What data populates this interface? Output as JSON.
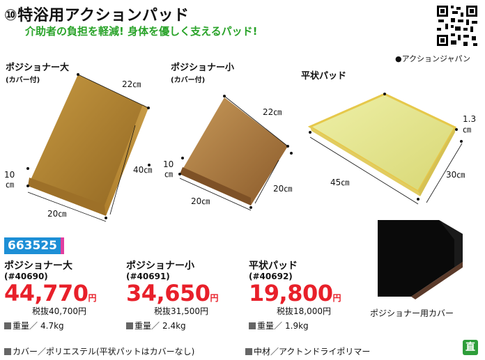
{
  "header": {
    "number_mark": "⑩",
    "title": "特浴用アクションパッド",
    "subtitle": "介助者の負担を軽減! 身体を優しく支えるパッド!"
  },
  "maker": "●アクションジャパン",
  "product_images": [
    {
      "label": "ポジショナー大",
      "sub": "(カバー付)",
      "dims": [
        "22㎝",
        "40㎝",
        "20㎝",
        "10",
        "㎝"
      ]
    },
    {
      "label": "ポジショナー小",
      "sub": "(カバー付)",
      "dims": [
        "22㎝",
        "20㎝",
        "20㎝",
        "10",
        "㎝"
      ]
    },
    {
      "label": "平状パッド",
      "sub": "",
      "dims": [
        "45㎝",
        "30㎝",
        "1.3",
        "㎝"
      ]
    }
  ],
  "catalog_code": "663525",
  "products": [
    {
      "name": "ポジショナー大",
      "code": "(#40690)",
      "price": "44,770",
      "yen": "円",
      "tax_excl": "税抜40,700円",
      "weight_label": "重量／",
      "weight": "4.7kg"
    },
    {
      "name": "ポジショナー小",
      "code": "(#40691)",
      "price": "34,650",
      "yen": "円",
      "tax_excl": "税抜31,500円",
      "weight_label": "重量／",
      "weight": "2.4kg"
    },
    {
      "name": "平状パッド",
      "code": "(#40692)",
      "price": "19,800",
      "yen": "円",
      "tax_excl": "税抜18,000円",
      "weight_label": "重量／",
      "weight": "1.9kg"
    }
  ],
  "cover_caption": "ポジショナー用カバー",
  "footer": {
    "cover_material": "カバー／ポリエステル(平状パットはカバーなし)",
    "core_material": "中材／アクトンドライポリマー"
  },
  "badge": "直"
}
